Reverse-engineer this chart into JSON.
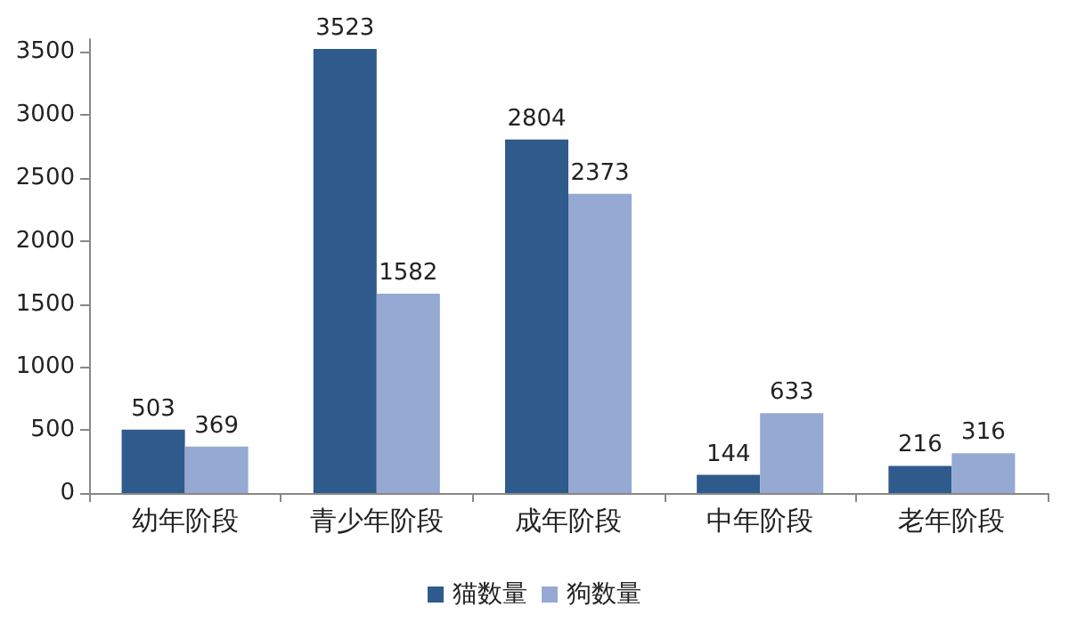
{
  "chart_data": {
    "type": "bar",
    "categories": [
      "幼年阶段",
      "青少年阶段",
      "成年阶段",
      "中年阶段",
      "老年阶段"
    ],
    "series": [
      {
        "name": "猫数量",
        "color": "#2f5a8c",
        "values": [
          503,
          3523,
          2804,
          144,
          216
        ]
      },
      {
        "name": "狗数量",
        "color": "#95a9d2",
        "values": [
          369,
          1582,
          2373,
          633,
          316
        ]
      }
    ],
    "ylim": [
      0,
      3600
    ],
    "yticks": [
      0,
      500,
      1000,
      1500,
      2000,
      2500,
      3000,
      3500
    ],
    "grid": false,
    "legend": "bottom",
    "data_labels": true
  }
}
